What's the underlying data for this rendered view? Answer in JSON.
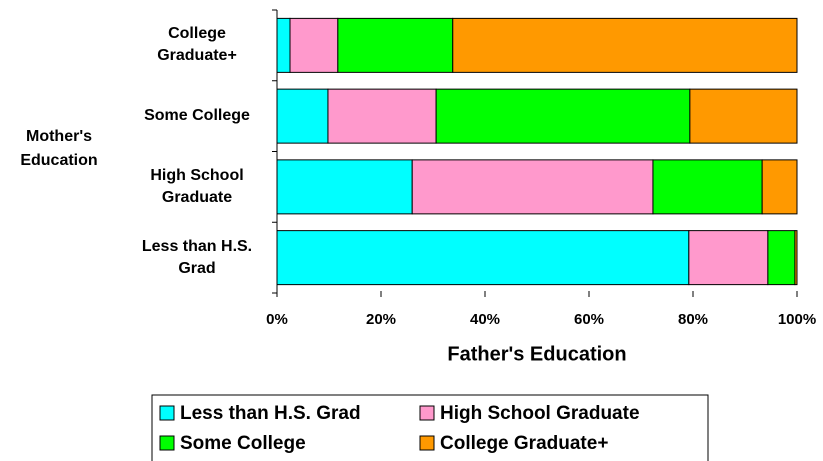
{
  "chart_data": {
    "type": "stacked-bar-horizontal",
    "x_label": "Father's Education",
    "y_label": "Mother's Education",
    "categories": [
      "College Graduate+",
      "Some College",
      "High School Graduate",
      "Less than H.S. Grad"
    ],
    "series": [
      {
        "name": "Less than H.S. Grad",
        "color": "#00ffff",
        "values": [
          2.5,
          9.8,
          26.0,
          79.2
        ]
      },
      {
        "name": "High School Graduate",
        "color": "#ff99cc",
        "values": [
          9.2,
          20.8,
          46.3,
          15.2
        ]
      },
      {
        "name": "Some College",
        "color": "#00ff00",
        "values": [
          22.1,
          48.8,
          21.0,
          5.2
        ]
      },
      {
        "name": "College Graduate+",
        "color": "#ff9900",
        "values": [
          66.2,
          20.6,
          6.7,
          0.4
        ]
      }
    ],
    "xlim": [
      0,
      100
    ],
    "xticks": [
      {
        "value": 0,
        "label": "0%"
      },
      {
        "value": 20,
        "label": "20%"
      },
      {
        "value": 40,
        "label": "40%"
      },
      {
        "value": 60,
        "label": "60%"
      },
      {
        "value": 80,
        "label": "80%"
      },
      {
        "value": 100,
        "label": "100%"
      }
    ],
    "legend": "bottom"
  }
}
